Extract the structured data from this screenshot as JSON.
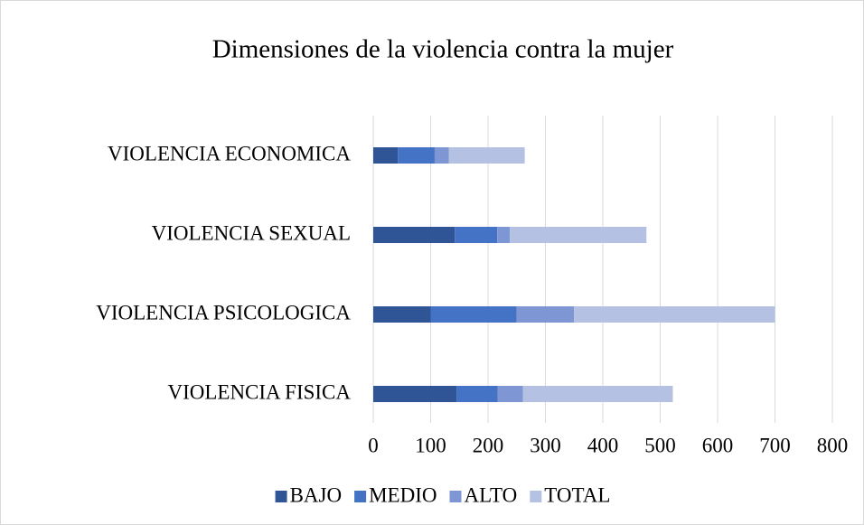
{
  "chart_data": {
    "type": "stacked_barh",
    "title": "Dimensiones de la violencia contra la mujer",
    "categories": [
      "VIOLENCIA FISICA",
      "VIOLENCIA PSICOLOGICA",
      "VIOLENCIA SEXUAL",
      "VIOLENCIA ECONOMICA"
    ],
    "series": [
      {
        "name": "BAJO",
        "color": "#2f5597",
        "values": [
          145,
          100,
          142,
          43
        ]
      },
      {
        "name": "MEDIO",
        "color": "#4472c4",
        "values": [
          72,
          150,
          74,
          64
        ]
      },
      {
        "name": "ALTO",
        "color": "#7f96d4",
        "values": [
          44,
          100,
          22,
          25
        ]
      },
      {
        "name": "TOTAL",
        "color": "#b4c1e2",
        "values": [
          261,
          350,
          238,
          132
        ]
      }
    ],
    "xlim": [
      0,
      800
    ],
    "xticks": [
      0,
      100,
      200,
      300,
      400,
      500,
      600,
      700,
      800
    ],
    "grid": true,
    "legend": "bottom"
  }
}
